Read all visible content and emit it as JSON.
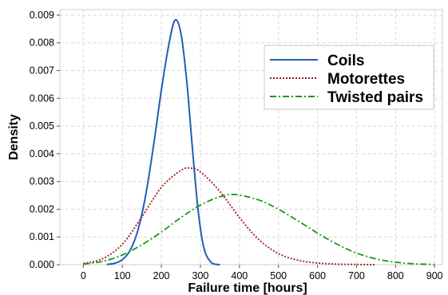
{
  "chart_data": {
    "type": "line",
    "title": "",
    "xlabel": "Failure time [hours]",
    "ylabel": "Density",
    "xlim": [
      -60,
      920
    ],
    "ylim": [
      0,
      0.0092
    ],
    "xticks": [
      0,
      100,
      200,
      300,
      400,
      500,
      600,
      700,
      800,
      900
    ],
    "xtick_labels": [
      "0",
      "100",
      "200",
      "300",
      "400",
      "500",
      "600",
      "700",
      "800",
      "900"
    ],
    "yticks": [
      0,
      0.001,
      0.002,
      0.003,
      0.004,
      0.005,
      0.006,
      0.007,
      0.008,
      0.009
    ],
    "ytick_labels": [
      "0.000",
      "0.001",
      "0.002",
      "0.003",
      "0.004",
      "0.005",
      "0.006",
      "0.007",
      "0.008",
      "0.009"
    ],
    "grid": true,
    "legend_position": "top-right",
    "series": [
      {
        "name": "Coils",
        "color": "#1f5fb4",
        "dash": "solid",
        "x": [
          60,
          80,
          100,
          120,
          140,
          160,
          180,
          200,
          220,
          235,
          250,
          265,
          280,
          295,
          310,
          330,
          350
        ],
        "y": [
          1e-05,
          5e-05,
          0.00018,
          0.00052,
          0.00125,
          0.00252,
          0.0043,
          0.0063,
          0.008,
          0.00882,
          0.00835,
          0.00662,
          0.00412,
          0.00185,
          0.00055,
          5e-05,
          0.0
        ]
      },
      {
        "name": "Motorettes",
        "color": "#a31a1a",
        "dash": "dotted",
        "x": [
          0,
          50,
          100,
          150,
          200,
          250,
          275,
          300,
          350,
          400,
          450,
          500,
          550,
          600,
          650,
          700,
          750
        ],
        "y": [
          4e-05,
          0.00022,
          0.00074,
          0.00172,
          0.00279,
          0.0034,
          0.00348,
          0.00335,
          0.00264,
          0.0017,
          0.0009,
          0.0004,
          0.00016,
          6e-05,
          2e-05,
          1e-05,
          0.0
        ]
      },
      {
        "name": "Twisted pairs",
        "color": "#159a15",
        "dash": "dashdot",
        "x": [
          0,
          50,
          100,
          150,
          200,
          250,
          300,
          350,
          390,
          450,
          500,
          550,
          600,
          650,
          700,
          750,
          800,
          850,
          900
        ],
        "y": [
          2e-05,
          0.00012,
          0.00035,
          0.00072,
          0.00118,
          0.0017,
          0.00215,
          0.00245,
          0.00253,
          0.00233,
          0.002,
          0.00158,
          0.00114,
          0.00074,
          0.00042,
          0.00021,
          9e-05,
          3e-05,
          1e-05
        ]
      }
    ]
  }
}
